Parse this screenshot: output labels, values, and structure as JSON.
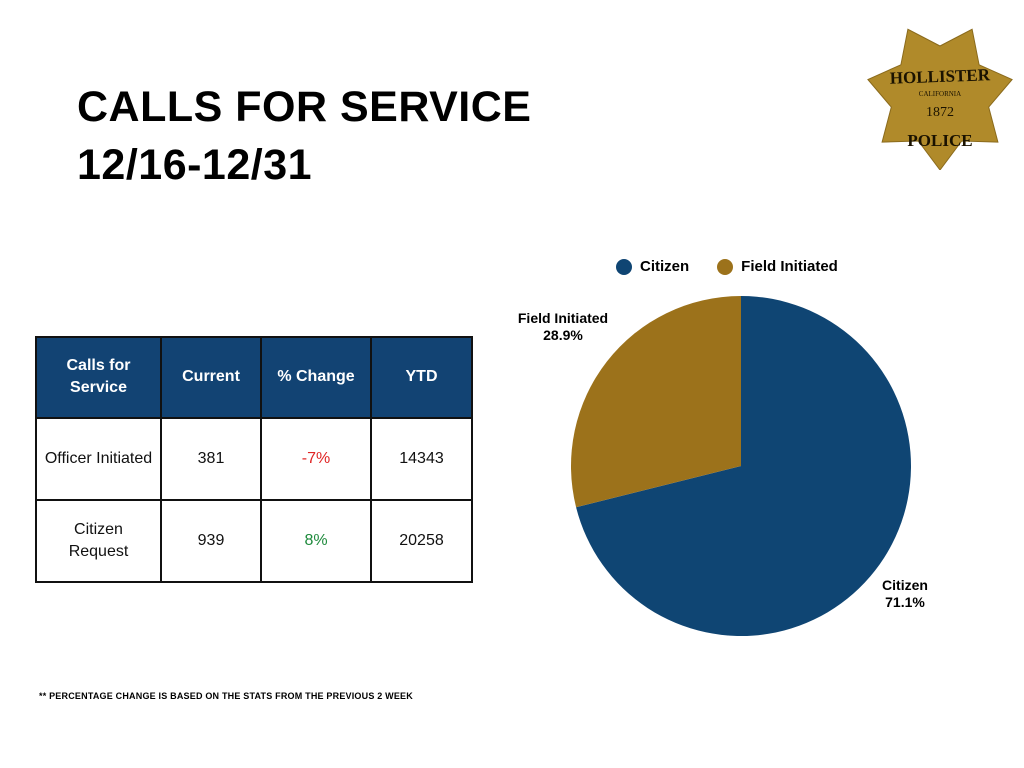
{
  "title": {
    "line1": "CALLS FOR SERVICE",
    "line2": "12/16-12/31"
  },
  "logo": {
    "text": "HOLLISTER CALIFORNIA 1872 POLICE",
    "icon": "police-badge-icon",
    "color": "#b08a2a"
  },
  "table": {
    "headers": [
      "Calls for Service",
      "Current",
      "% Change",
      "YTD"
    ],
    "rows": [
      {
        "type": "Officer Initiated",
        "current": "381",
        "change": "-7%",
        "ytd": "14343"
      },
      {
        "type": "Citizen Request",
        "current": "939",
        "change": "8%",
        "ytd": "20258"
      }
    ],
    "header_color": "#124373",
    "negative_color": "#e02424",
    "positive_color": "#1e8a3c"
  },
  "footnote": "** PERCENTAGE CHANGE IS BASED ON THE STATS FROM THE PREVIOUS 2 WEEK",
  "chart_data": {
    "type": "pie",
    "legend_position": "top",
    "slices": [
      {
        "name": "Citizen",
        "value": 71.1,
        "label": "71.1%",
        "color": "#0f4573"
      },
      {
        "name": "Field Initiated",
        "value": 28.9,
        "label": "28.9%",
        "color": "#9c721b"
      }
    ]
  }
}
